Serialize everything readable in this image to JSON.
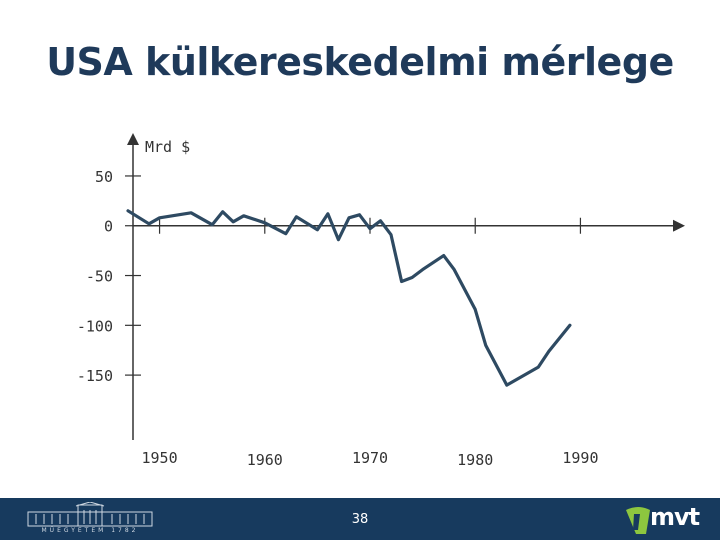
{
  "page": {
    "title": "USA külkereskedelmi mérlege",
    "page_number": "38",
    "logo_right_text": "mvt",
    "logo_left_caption": "MŰEGYETEM 1782"
  },
  "colors": {
    "title": "#1f3a5a",
    "line": "#2e4a62",
    "axis": "#333333",
    "footer": "#173a5e"
  },
  "chart_data": {
    "type": "line",
    "title": "",
    "ylabel": "Mrd $",
    "xlabel": "",
    "xlim": [
      1947,
      1993
    ],
    "ylim": [
      -175,
      60
    ],
    "x_ticks": [
      1950,
      1960,
      1970,
      1980,
      1990
    ],
    "x_tick_labels": [
      "1950",
      "1960",
      "1970",
      "1980",
      "1990"
    ],
    "y_ticks": [
      50,
      0,
      -50,
      -100,
      -150
    ],
    "y_tick_labels": [
      "50",
      "0",
      "-50",
      "-100",
      "-150"
    ],
    "grid": false,
    "series": [
      {
        "x": [
          1947,
          1949,
          1950,
          1953,
          1955,
          1956,
          1957,
          1958,
          1960,
          1962,
          1963,
          1965,
          1966,
          1967,
          1968,
          1969,
          1970,
          1971,
          1972,
          1973,
          1974,
          1975,
          1977,
          1978,
          1980,
          1981,
          1983,
          1986,
          1987,
          1989
        ],
        "y": [
          15,
          2,
          8,
          13,
          1,
          14,
          4,
          10,
          3,
          -8,
          9,
          -4,
          12,
          -14,
          8,
          11,
          -3,
          5,
          -9,
          -56,
          -52,
          -44,
          -30,
          -44,
          -84,
          -120,
          -160,
          -142,
          -126,
          -100
        ]
      }
    ]
  }
}
